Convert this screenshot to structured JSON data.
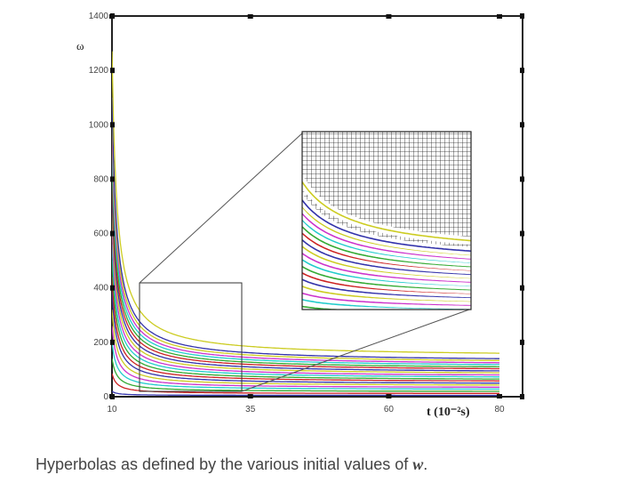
{
  "chart_data": {
    "type": "line",
    "xlabel": "t (10⁻²s)",
    "ylabel": "ω",
    "x_ticks": [
      "10",
      "35",
      "60",
      "80"
    ],
    "y_ticks": [
      "0",
      "200",
      "400",
      "600",
      "800",
      "1000",
      "1200",
      "1400"
    ],
    "xlim": [
      10,
      80
    ],
    "ylim": [
      0,
      1400
    ],
    "grid": false,
    "curve_colors": [
      "#3333aa",
      "#cc2222",
      "#33aa33",
      "#22cccc",
      "#cc33cc",
      "#cccc22",
      "#3333aa",
      "#cc2222",
      "#33aa33",
      "#22cccc",
      "#cc33cc",
      "#cccc22",
      "#3333aa",
      "#cc2222",
      "#33aa33",
      "#22cccc",
      "#cc33cc",
      "#cccc22",
      "#3333aa",
      "#cccc22"
    ],
    "initial_values": [
      20,
      85,
      140,
      200,
      260,
      320,
      385,
      440,
      500,
      560,
      620,
      680,
      740,
      800,
      860,
      920,
      980,
      1040,
      1100,
      1270
    ],
    "final_values": [
      5,
      12,
      20,
      28,
      35,
      43,
      50,
      58,
      65,
      73,
      80,
      88,
      95,
      103,
      110,
      118,
      125,
      133,
      140,
      160
    ],
    "zoom_box": {
      "x_range": [
        15,
        35
      ],
      "y_range": [
        30,
        430
      ]
    }
  },
  "caption": {
    "text": "Hyperbolas as defined by the various initial values of ",
    "variable": "w",
    "end": "."
  }
}
